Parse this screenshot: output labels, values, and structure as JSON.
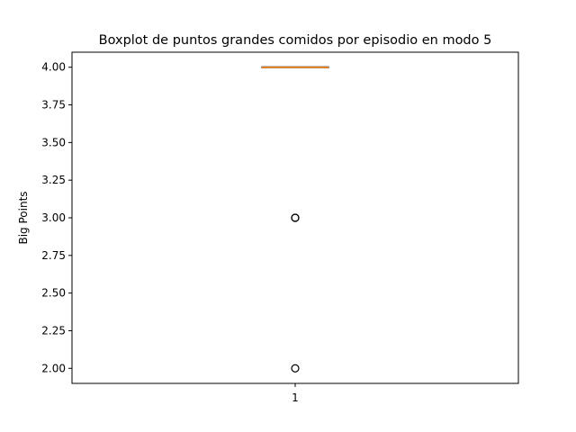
{
  "chart_data": {
    "type": "box",
    "title": "Boxplot de puntos grandes comidos por episodio en modo 5",
    "ylabel": "Big Points",
    "xlabel": "",
    "categories": [
      "1"
    ],
    "ylim": [
      1.9,
      4.1
    ],
    "yticks": [
      2.0,
      2.25,
      2.5,
      2.75,
      3.0,
      3.25,
      3.5,
      3.75,
      4.0
    ],
    "ytick_labels": [
      "2.00",
      "2.25",
      "2.50",
      "2.75",
      "3.00",
      "3.25",
      "3.50",
      "3.75",
      "4.00"
    ],
    "boxes": [
      {
        "category": "1",
        "q1": 4.0,
        "median": 4.0,
        "q3": 4.0,
        "whisker_low": 4.0,
        "whisker_high": 4.0,
        "outliers": [
          3.0,
          3.0,
          2.0
        ]
      }
    ],
    "grid": false,
    "colors": {
      "box": "#000000",
      "median": "#ff7f0e",
      "outlier": "#000000"
    }
  }
}
